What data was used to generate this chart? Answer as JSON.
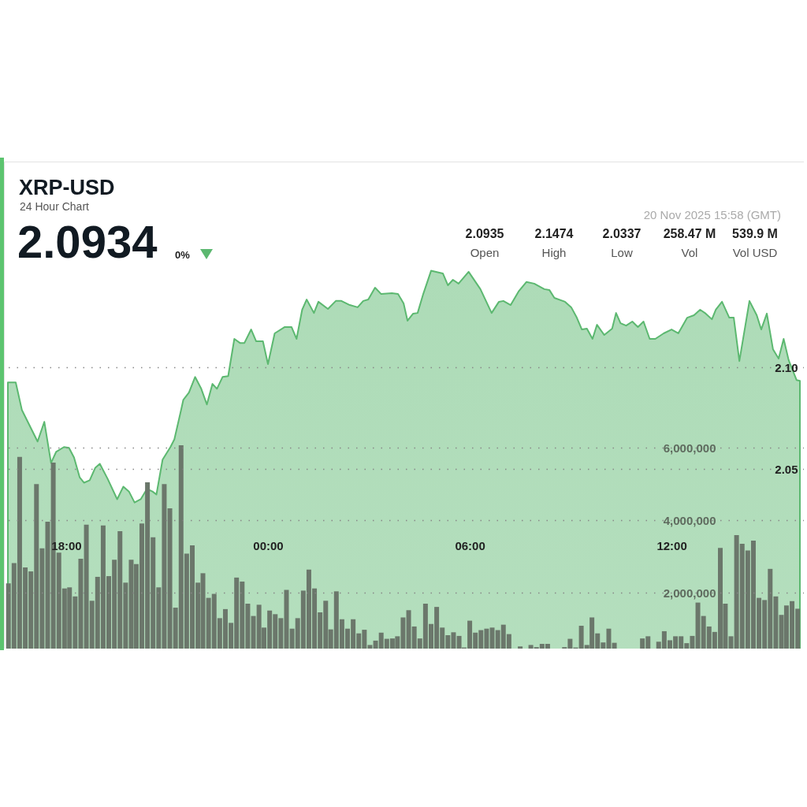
{
  "chart_data": {
    "type": "area",
    "title": "XRP-USD",
    "subtitle": "24 Hour Chart",
    "annotations": [
      "2.0934",
      "0%",
      "20 Nov 2025 15:58 (GMT)",
      "2.0935",
      "Open",
      "2.1474",
      "High",
      "2.0337",
      "Low",
      "258.47 M",
      "Vol",
      "539.9 M",
      "Vol USD"
    ],
    "xlim": [
      "2025-11-19T16:16",
      "2025-11-20T15:49"
    ],
    "xticks": [
      {
        "value": "2025-11-19T18:00",
        "label": "18:00"
      },
      {
        "value": "2025-11-20T00:00",
        "label": "00:00"
      },
      {
        "value": "2025-11-20T06:00",
        "label": "06:00"
      },
      {
        "value": "2025-11-20T12:00",
        "label": "12:00"
      }
    ],
    "ylim": [
      1.962,
      2.201
    ],
    "yticks": [
      {
        "value": 2.05,
        "label": "2.05"
      },
      {
        "value": 2.1,
        "label": "2.10"
      }
    ],
    "y2lim": [
      460000,
      13900000
    ],
    "y2ticks": [
      {
        "value": 2000000,
        "label": "2,000,000"
      },
      {
        "value": 4000000,
        "label": "4,000,000"
      },
      {
        "value": 6000000,
        "label": "6,000,000"
      }
    ],
    "grid": "y",
    "series": [
      {
        "color": "#5cb870",
        "x": [
          "2025-11-19T16:16",
          "2025-11-19T16:30",
          "2025-11-19T16:41",
          "2025-11-19T17:09",
          "2025-11-19T17:21",
          "2025-11-19T17:33",
          "2025-11-19T17:42",
          "2025-11-19T17:56",
          "2025-11-19T18:05",
          "2025-11-19T18:14",
          "2025-11-19T18:24",
          "2025-11-19T18:32",
          "2025-11-19T18:42",
          "2025-11-19T18:52",
          "2025-11-19T19:00",
          "2025-11-19T19:14",
          "2025-11-19T19:31",
          "2025-11-19T19:42",
          "2025-11-19T19:52",
          "2025-11-19T20:02",
          "2025-11-19T20:13",
          "2025-11-19T20:24",
          "2025-11-19T20:34",
          "2025-11-19T20:41",
          "2025-11-19T20:52",
          "2025-11-19T21:06",
          "2025-11-19T21:13",
          "2025-11-19T21:25",
          "2025-11-19T21:29",
          "2025-11-19T21:39",
          "2025-11-19T21:50",
          "2025-11-19T22:01",
          "2025-11-19T22:11",
          "2025-11-19T22:21",
          "2025-11-19T22:29",
          "2025-11-19T22:39",
          "2025-11-19T22:49",
          "2025-11-19T23:00",
          "2025-11-19T23:10",
          "2025-11-19T23:18",
          "2025-11-19T23:30",
          "2025-11-19T23:39",
          "2025-11-19T23:51",
          "2025-11-20T00:00",
          "2025-11-20T00:12",
          "2025-11-20T00:30",
          "2025-11-20T00:42",
          "2025-11-20T00:51",
          "2025-11-20T01:01",
          "2025-11-20T01:09",
          "2025-11-20T01:22",
          "2025-11-20T01:30",
          "2025-11-20T01:47",
          "2025-11-20T02:01",
          "2025-11-20T02:11",
          "2025-11-20T02:26",
          "2025-11-20T02:40",
          "2025-11-20T02:50",
          "2025-11-20T02:59",
          "2025-11-20T03:11",
          "2025-11-20T03:22",
          "2025-11-20T03:41",
          "2025-11-20T03:52",
          "2025-11-20T04:02",
          "2025-11-20T04:09",
          "2025-11-20T04:19",
          "2025-11-20T04:27",
          "2025-11-20T04:37",
          "2025-11-20T04:51",
          "2025-11-20T05:12",
          "2025-11-20T05:21",
          "2025-11-20T05:30",
          "2025-11-20T05:40",
          "2025-11-20T05:58",
          "2025-11-20T06:19",
          "2025-11-20T06:39",
          "2025-11-20T06:52",
          "2025-11-20T07:00",
          "2025-11-20T07:13",
          "2025-11-20T07:27",
          "2025-11-20T07:41",
          "2025-11-20T07:55",
          "2025-11-20T08:13",
          "2025-11-20T08:22",
          "2025-11-20T08:31",
          "2025-11-20T08:50",
          "2025-11-20T09:01",
          "2025-11-20T09:11",
          "2025-11-20T09:20",
          "2025-11-20T09:29",
          "2025-11-20T09:39",
          "2025-11-20T09:47",
          "2025-11-20T10:00",
          "2025-11-20T10:14",
          "2025-11-20T10:21",
          "2025-11-20T10:29",
          "2025-11-20T10:39",
          "2025-11-20T10:50",
          "2025-11-20T11:00",
          "2025-11-20T11:10",
          "2025-11-20T11:21",
          "2025-11-20T11:31",
          "2025-11-20T11:46",
          "2025-11-20T12:00",
          "2025-11-20T12:12",
          "2025-11-20T12:28",
          "2025-11-20T12:40",
          "2025-11-20T12:51",
          "2025-11-20T13:01",
          "2025-11-20T13:12",
          "2025-11-20T13:19",
          "2025-11-20T13:30",
          "2025-11-20T13:43",
          "2025-11-20T13:51",
          "2025-11-20T14:01",
          "2025-11-20T14:19",
          "2025-11-20T14:32",
          "2025-11-20T14:40",
          "2025-11-20T14:50",
          "2025-11-20T15:01",
          "2025-11-20T15:11",
          "2025-11-20T15:20",
          "2025-11-20T15:29",
          "2025-11-20T15:43",
          "2025-11-20T15:49"
        ],
        "values": [
          2.0926,
          2.0926,
          2.0791,
          2.0636,
          2.0733,
          2.0531,
          2.0585,
          2.0609,
          2.0605,
          2.0558,
          2.0461,
          2.0434,
          2.0446,
          2.0508,
          2.0527,
          2.0453,
          2.0353,
          2.0415,
          2.0391,
          2.0337,
          2.0353,
          2.0403,
          2.0391,
          2.0376,
          2.0547,
          2.0609,
          2.0647,
          2.0791,
          2.0841,
          2.0876,
          2.0953,
          2.0895,
          2.0818,
          2.0919,
          2.0895,
          2.0953,
          2.0957,
          2.114,
          2.112,
          2.112,
          2.1186,
          2.1128,
          2.1128,
          2.1016,
          2.1167,
          2.1198,
          2.1198,
          2.114,
          2.1283,
          2.1333,
          2.1267,
          2.1322,
          2.1287,
          2.1326,
          2.1326,
          2.1306,
          2.1295,
          2.1326,
          2.1333,
          2.1391,
          2.136,
          2.1364,
          2.136,
          2.1314,
          2.1229,
          2.1264,
          2.1267,
          2.136,
          2.1474,
          2.1461,
          2.1403,
          2.143,
          2.1411,
          2.1469,
          2.1384,
          2.1267,
          2.1322,
          2.1326,
          2.1306,
          2.1372,
          2.1419,
          2.1411,
          2.1384,
          2.138,
          2.1341,
          2.1322,
          2.1295,
          2.1244,
          2.1186,
          2.119,
          2.114,
          2.1209,
          2.1159,
          2.119,
          2.1267,
          2.1217,
          2.1205,
          2.1225,
          2.1198,
          2.1225,
          2.114,
          2.114,
          2.1167,
          2.1186,
          2.1167,
          2.1244,
          2.1256,
          2.1283,
          2.1264,
          2.1236,
          2.1283,
          2.1322,
          2.1244,
          2.1244,
          2.1031,
          2.1326,
          2.1256,
          2.1186,
          2.1264,
          2.1089,
          2.1043,
          2.114,
          2.1035,
          2.0938,
          2.0934
        ]
      },
      {
        "type": "bar",
        "axis": "y2",
        "color": "#6b776b",
        "x": [
          "2025-11-19T16:17",
          "2025-11-19T16:27",
          "2025-11-19T16:37",
          "2025-11-19T16:47",
          "2025-11-19T16:57",
          "2025-11-19T17:07",
          "2025-11-19T17:17",
          "2025-11-19T17:27",
          "2025-11-19T17:37",
          "2025-11-19T17:47",
          "2025-11-19T17:57",
          "2025-11-19T18:06",
          "2025-11-19T18:16",
          "2025-11-19T18:26",
          "2025-11-19T18:36",
          "2025-11-19T18:46",
          "2025-11-19T18:56",
          "2025-11-19T19:06",
          "2025-11-19T19:16",
          "2025-11-19T19:26",
          "2025-11-19T19:36",
          "2025-11-19T19:46",
          "2025-11-19T19:56",
          "2025-11-19T20:05",
          "2025-11-19T20:15",
          "2025-11-19T20:25",
          "2025-11-19T20:35",
          "2025-11-19T20:45",
          "2025-11-19T20:55",
          "2025-11-19T21:05",
          "2025-11-19T21:15",
          "2025-11-19T21:25",
          "2025-11-19T21:35",
          "2025-11-19T21:45",
          "2025-11-19T21:55",
          "2025-11-19T22:04",
          "2025-11-19T22:14",
          "2025-11-19T22:24",
          "2025-11-19T22:34",
          "2025-11-19T22:44",
          "2025-11-19T22:54",
          "2025-11-19T23:04",
          "2025-11-19T23:14",
          "2025-11-19T23:24",
          "2025-11-19T23:34",
          "2025-11-19T23:44",
          "2025-11-19T23:53",
          "2025-11-20T00:03",
          "2025-11-20T00:13",
          "2025-11-20T00:23",
          "2025-11-20T00:33",
          "2025-11-20T00:43",
          "2025-11-20T00:53",
          "2025-11-20T01:03",
          "2025-11-20T01:13",
          "2025-11-20T01:23",
          "2025-11-20T01:33",
          "2025-11-20T01:43",
          "2025-11-20T01:52",
          "2025-11-20T02:02",
          "2025-11-20T02:12",
          "2025-11-20T02:22",
          "2025-11-20T02:32",
          "2025-11-20T02:42",
          "2025-11-20T02:52",
          "2025-11-20T03:02",
          "2025-11-20T03:12",
          "2025-11-20T03:22",
          "2025-11-20T03:32",
          "2025-11-20T03:42",
          "2025-11-20T03:51",
          "2025-11-20T04:01",
          "2025-11-20T04:11",
          "2025-11-20T04:21",
          "2025-11-20T04:31",
          "2025-11-20T04:41",
          "2025-11-20T04:51",
          "2025-11-20T05:01",
          "2025-11-20T05:11",
          "2025-11-20T05:21",
          "2025-11-20T05:31",
          "2025-11-20T05:41",
          "2025-11-20T05:50",
          "2025-11-20T06:00",
          "2025-11-20T06:10",
          "2025-11-20T06:20",
          "2025-11-20T06:30",
          "2025-11-20T06:40",
          "2025-11-20T06:50",
          "2025-11-20T07:00",
          "2025-11-20T07:10",
          "2025-11-20T07:20",
          "2025-11-20T07:30",
          "2025-11-20T07:39",
          "2025-11-20T07:49",
          "2025-11-20T07:59",
          "2025-11-20T08:09",
          "2025-11-20T08:19",
          "2025-11-20T08:29",
          "2025-11-20T08:39",
          "2025-11-20T08:49",
          "2025-11-20T08:59",
          "2025-11-20T09:09",
          "2025-11-20T09:19",
          "2025-11-20T09:29",
          "2025-11-20T09:38",
          "2025-11-20T09:48",
          "2025-11-20T09:58",
          "2025-11-20T10:08",
          "2025-11-20T10:18",
          "2025-11-20T10:28",
          "2025-11-20T10:38",
          "2025-11-20T10:48",
          "2025-11-20T10:58",
          "2025-11-20T11:08",
          "2025-11-20T11:18",
          "2025-11-20T11:28",
          "2025-11-20T11:37",
          "2025-11-20T11:47",
          "2025-11-20T11:57",
          "2025-11-20T12:07",
          "2025-11-20T12:17",
          "2025-11-20T12:27",
          "2025-11-20T12:37",
          "2025-11-20T12:47",
          "2025-11-20T12:57",
          "2025-11-20T13:07",
          "2025-11-20T13:17",
          "2025-11-20T13:27",
          "2025-11-20T13:36",
          "2025-11-20T13:46",
          "2025-11-20T13:56",
          "2025-11-20T14:06",
          "2025-11-20T14:16",
          "2025-11-20T14:26",
          "2025-11-20T14:36",
          "2025-11-20T14:46",
          "2025-11-20T14:56",
          "2025-11-20T15:06",
          "2025-11-20T15:16",
          "2025-11-20T15:25",
          "2025-11-20T15:35",
          "2025-11-20T15:45"
        ],
        "values": [
          2260000,
          2820000,
          5750000,
          2700000,
          2590000,
          5000000,
          3230000,
          3960000,
          5590000,
          3110000,
          2120000,
          2150000,
          1900000,
          2940000,
          3880000,
          1780000,
          2440000,
          3860000,
          2460000,
          2910000,
          3700000,
          2280000,
          2910000,
          2790000,
          3910000,
          5050000,
          3530000,
          2150000,
          5000000,
          4330000,
          1590000,
          6070000,
          3080000,
          3310000,
          2280000,
          2540000,
          1860000,
          1970000,
          1300000,
          1550000,
          1170000,
          2420000,
          2310000,
          1700000,
          1360000,
          1670000,
          1040000,
          1510000,
          1410000,
          1300000,
          2080000,
          1010000,
          1300000,
          2060000,
          2640000,
          2120000,
          1460000,
          1780000,
          990000,
          2040000,
          1270000,
          1010000,
          1270000,
          880000,
          980000,
          560000,
          680000,
          900000,
          730000,
          740000,
          800000,
          1320000,
          1520000,
          1070000,
          740000,
          1700000,
          1140000,
          1610000,
          1040000,
          830000,
          910000,
          810000,
          490000,
          1230000,
          900000,
          970000,
          1010000,
          1040000,
          970000,
          1120000,
          860000,
          null,
          520000,
          null,
          560000,
          500000,
          590000,
          590000,
          null,
          null,
          500000,
          730000,
          490000,
          1090000,
          560000,
          1320000,
          880000,
          630000,
          1010000,
          620000,
          null,
          null,
          null,
          null,
          740000,
          800000,
          null,
          650000,
          940000,
          690000,
          800000,
          800000,
          610000,
          810000,
          1730000,
          1360000,
          1070000,
          920000,
          3240000,
          1700000,
          800000,
          3590000,
          3350000,
          3170000,
          3440000,
          1860000,
          1800000,
          2660000,
          1900000,
          1390000,
          1650000,
          1770000,
          1560000
        ]
      }
    ]
  }
}
